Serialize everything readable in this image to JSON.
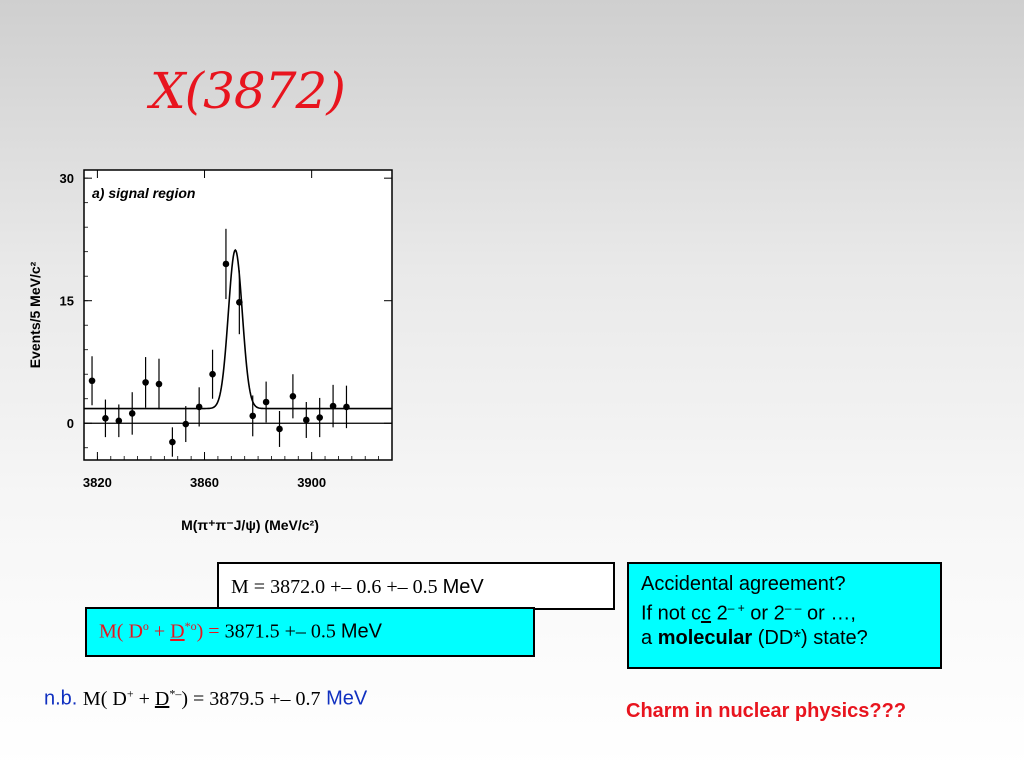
{
  "slide_title": "X(3872)",
  "chart_data": {
    "type": "scatter",
    "panel_label": "a) signal region",
    "xlabel": "M(π⁺π⁻J/ψ) (MeV/c²)",
    "ylabel": "Events/5 MeV/c²",
    "xlim": [
      3815,
      3930
    ],
    "ylim": [
      -4.5,
      31
    ],
    "xticks": [
      3820,
      3860,
      3900
    ],
    "yticks": [
      0,
      15,
      30
    ],
    "tick_labels_x": [
      "3820",
      "3860",
      "3900"
    ],
    "tick_labels_y": [
      "0",
      "15",
      "30"
    ],
    "points": [
      {
        "x": 3818,
        "y": 5.2,
        "err": 3.0
      },
      {
        "x": 3823,
        "y": 0.6,
        "err": 2.3
      },
      {
        "x": 3828,
        "y": 0.3,
        "err": 2.0
      },
      {
        "x": 3833,
        "y": 1.2,
        "err": 2.6
      },
      {
        "x": 3838,
        "y": 5.0,
        "err": 3.1
      },
      {
        "x": 3843,
        "y": 4.8,
        "err": 3.1
      },
      {
        "x": 3848,
        "y": -2.3,
        "err": 1.8
      },
      {
        "x": 3853,
        "y": -0.1,
        "err": 2.2
      },
      {
        "x": 3858,
        "y": 2.0,
        "err": 2.4
      },
      {
        "x": 3863,
        "y": 6.0,
        "err": 3.0
      },
      {
        "x": 3868,
        "y": 19.5,
        "err": 4.3
      },
      {
        "x": 3873,
        "y": 14.8,
        "err": 3.9
      },
      {
        "x": 3878,
        "y": 0.9,
        "err": 2.5
      },
      {
        "x": 3883,
        "y": 2.6,
        "err": 2.5
      },
      {
        "x": 3888,
        "y": -0.7,
        "err": 2.2
      },
      {
        "x": 3893,
        "y": 3.3,
        "err": 2.7
      },
      {
        "x": 3898,
        "y": 0.4,
        "err": 2.2
      },
      {
        "x": 3903,
        "y": 0.7,
        "err": 2.4
      },
      {
        "x": 3908,
        "y": 2.1,
        "err": 2.6
      },
      {
        "x": 3913,
        "y": 2.0,
        "err": 2.6
      }
    ],
    "fit": {
      "background": 1.8,
      "peak_height": 19.4,
      "mean": 3871.5,
      "sigma": 2.6
    },
    "zero_line": 0
  },
  "mass_box": {
    "prefix": "M = ",
    "value": "3872.0 +– 0.6 +– 0.5",
    "unit": "MeV"
  },
  "d0_box": {
    "prefix": "M( D",
    "sup1": "o",
    "plus": " + ",
    "dstar": "D",
    "sup2": "*o",
    "close": ")  =  ",
    "value": "3871.5 +– 0.5",
    "unit": "MeV"
  },
  "note_box": {
    "line1": "Accidental agreement?",
    "line2_a": "If not c",
    "line2_cbar": "c",
    "line2_b": " 2",
    "line2_sup1": "– +",
    "line2_c": " or 2",
    "line2_sup2": "– –",
    "line2_d": " or …,",
    "line3_a": "a ",
    "line3_bold": "molecular",
    "line3_b": " (DD*) state?"
  },
  "nb_line": {
    "label": "n.b. ",
    "prefix": "M( D",
    "sup1": "+",
    "plus": " + ",
    "dstar": "D",
    "sup2": "*–",
    "close": ")  =  ",
    "value": "3879.5 +– 0.7",
    "unit": "MeV"
  },
  "charm_text": "Charm in nuclear physics???",
  "colors": {
    "accent_red": "#e8141e",
    "box_cyan": "#00ffff",
    "blue": "#1030c0"
  }
}
